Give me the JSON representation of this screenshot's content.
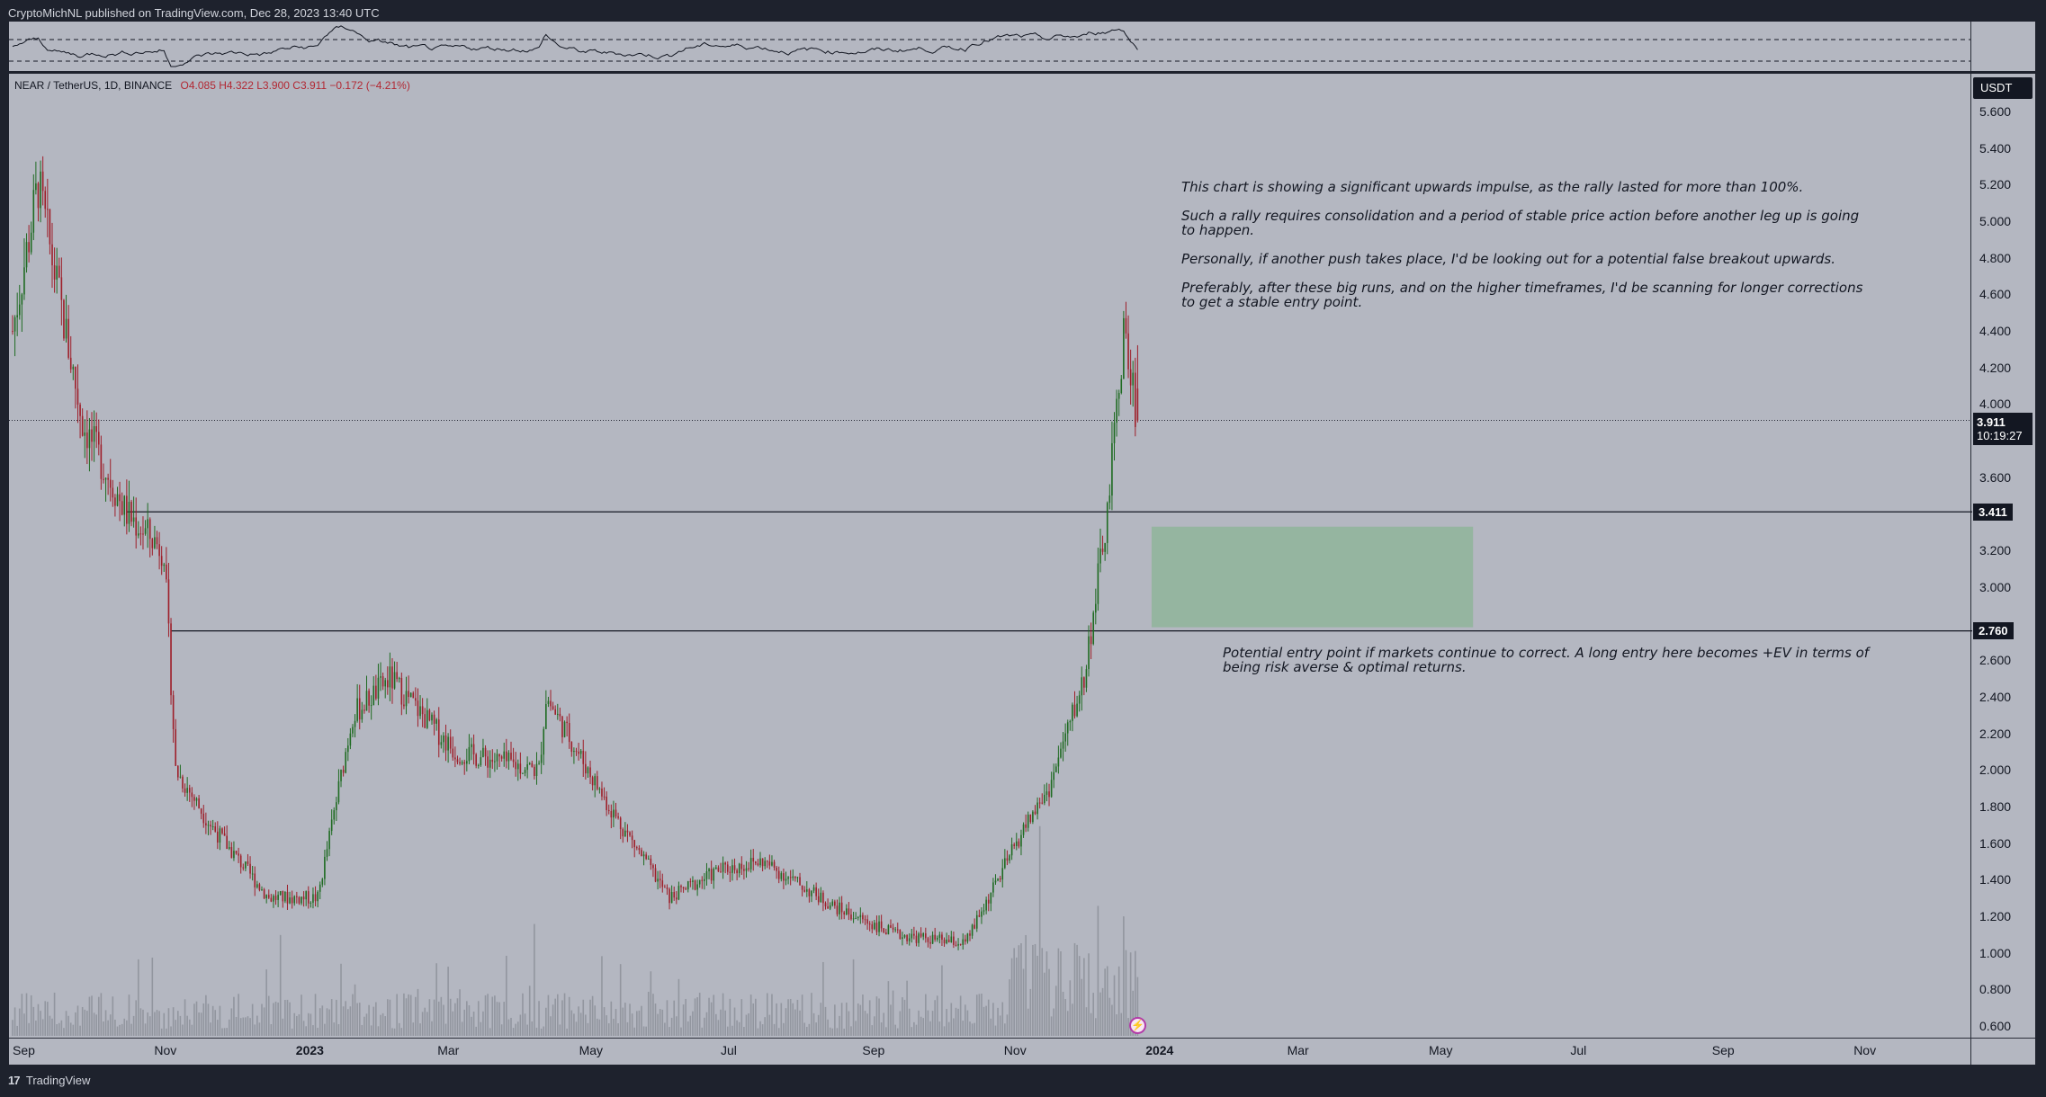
{
  "header": {
    "publish_line": "CryptoMichNL published on TradingView.com, Dec 28, 2023 13:40 UTC"
  },
  "legend": {
    "symbol": "NEAR / TetherUS, 1D, BINANCE",
    "ohlc": "O4.085  H4.322  L3.900  C3.911  −0.172 (−4.21%)"
  },
  "price_scale": {
    "currency": "USDT",
    "ticks": [
      "5.600",
      "5.400",
      "5.200",
      "5.000",
      "4.800",
      "4.600",
      "4.400",
      "4.200",
      "4.000",
      "3.600",
      "3.200",
      "3.000",
      "2.600",
      "2.400",
      "2.200",
      "2.000",
      "1.800",
      "1.600",
      "1.400",
      "1.200",
      "1.000",
      "0.800",
      "0.600"
    ],
    "last_price": "3.911",
    "countdown": "10:19:27",
    "level_upper": "3.411",
    "level_lower": "2.760"
  },
  "time_axis": {
    "labels": [
      "Sep",
      "Nov",
      "2023",
      "Mar",
      "May",
      "Jul",
      "Sep",
      "Nov",
      "2024",
      "Mar",
      "May",
      "Jul",
      "Sep",
      "Nov"
    ],
    "bold": [
      "2023",
      "2024"
    ]
  },
  "annotations": {
    "top": [
      "This chart is showing a significant upwards impulse, as the rally lasted for more than 100%.",
      "Such a rally requires consolidation and a period of stable price action before another leg up is going to happen.",
      "Personally, if another push takes place, I'd be looking out for a potential false breakout upwards.",
      "Preferably, after these big runs, and on the higher timeframes, I'd be scanning for longer corrections to get a stable entry point."
    ],
    "bottom": "Potential entry point if markets continue to correct. A long entry here becomes +EV in terms of being risk averse & optimal returns."
  },
  "footer": {
    "logo": "17",
    "brand": "TradingView"
  },
  "colors": {
    "background": "#b4b7c1",
    "frame": "#1e222d",
    "up": "#1f6b22",
    "down": "#9e1f2a",
    "zone": "#8fb59a",
    "volume": "#8a8d96"
  },
  "chart_data": {
    "type": "candlestick",
    "symbol": "NEAR/USDT",
    "timeframe": "1D",
    "x_range": [
      "2022-09",
      "2024-11"
    ],
    "ylim": [
      0.6,
      5.6
    ],
    "ohlc_last": {
      "open": 4.085,
      "high": 4.322,
      "low": 3.9,
      "close": 3.911,
      "change": -0.172,
      "change_pct": -4.21
    },
    "horizontal_levels": [
      3.411,
      2.76
    ],
    "zone": {
      "from_price": 2.78,
      "to_price": 3.33,
      "from_date": "2024-01",
      "to_date": "2024-05"
    },
    "approx_closes": [
      {
        "date": "2022-09-01",
        "close": 4.4
      },
      {
        "date": "2022-09-12",
        "close": 5.2
      },
      {
        "date": "2022-10-01",
        "close": 3.9
      },
      {
        "date": "2022-10-20",
        "close": 3.4
      },
      {
        "date": "2022-11-05",
        "close": 3.2
      },
      {
        "date": "2022-11-10",
        "close": 2.0
      },
      {
        "date": "2022-11-25",
        "close": 1.7
      },
      {
        "date": "2022-12-20",
        "close": 1.3
      },
      {
        "date": "2023-01-10",
        "close": 1.3
      },
      {
        "date": "2023-01-25",
        "close": 2.3
      },
      {
        "date": "2023-02-10",
        "close": 2.5
      },
      {
        "date": "2023-03-10",
        "close": 2.1
      },
      {
        "date": "2023-04-15",
        "close": 2.0
      },
      {
        "date": "2023-04-18",
        "close": 2.4
      },
      {
        "date": "2023-05-15",
        "close": 1.8
      },
      {
        "date": "2023-06-10",
        "close": 1.3
      },
      {
        "date": "2023-07-01",
        "close": 1.45
      },
      {
        "date": "2023-07-20",
        "close": 1.5
      },
      {
        "date": "2023-08-20",
        "close": 1.25
      },
      {
        "date": "2023-09-15",
        "close": 1.1
      },
      {
        "date": "2023-10-15",
        "close": 1.05
      },
      {
        "date": "2023-11-10",
        "close": 1.7
      },
      {
        "date": "2023-11-20",
        "close": 1.9
      },
      {
        "date": "2023-12-05",
        "close": 2.5
      },
      {
        "date": "2023-12-15",
        "close": 3.4
      },
      {
        "date": "2023-12-22",
        "close": 4.4
      },
      {
        "date": "2023-12-28",
        "close": 3.911
      }
    ]
  }
}
